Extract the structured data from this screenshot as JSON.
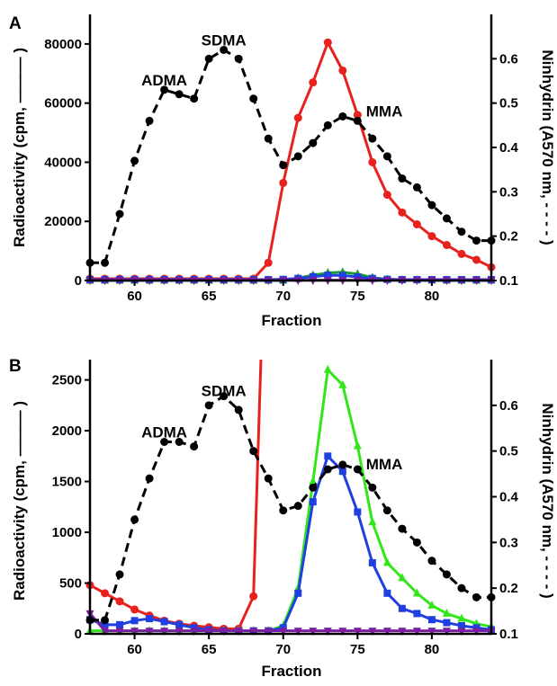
{
  "chart_data": [
    {
      "panel": "A",
      "type": "line",
      "xlabel": "Fraction",
      "ylabel": "Radioactivity (cpm, ——— )",
      "y2label": "Ninhydrin (A570 nm, - - - - )",
      "xlim": [
        57,
        84
      ],
      "ylim": [
        0,
        90000
      ],
      "y2lim": [
        0.1,
        0.7
      ],
      "x_ticks": [
        60,
        65,
        70,
        75,
        80
      ],
      "y_ticks": [
        0,
        20000,
        40000,
        60000,
        80000
      ],
      "y2_ticks": [
        0.1,
        0.2,
        0.3,
        0.4,
        0.5,
        0.6
      ],
      "annotations": [
        {
          "text": "ADMA",
          "x": 62,
          "y2": 0.54
        },
        {
          "text": "SDMA",
          "x": 66,
          "y2": 0.63
        },
        {
          "text": "MMA",
          "x": 76.8,
          "y2": 0.47
        }
      ],
      "series": [
        {
          "color": "#e8211e",
          "style": "solid",
          "marker": "circle",
          "axis": "left",
          "x": [
            57,
            58,
            59,
            60,
            61,
            62,
            63,
            64,
            65,
            66,
            67,
            68,
            69,
            70,
            71,
            72,
            73,
            74,
            75,
            76,
            77,
            78,
            79,
            80,
            81,
            82,
            83,
            84
          ],
          "y": [
            600,
            600,
            600,
            600,
            600,
            600,
            600,
            600,
            600,
            600,
            600,
            600,
            6000,
            33000,
            55000,
            67000,
            80500,
            71000,
            56000,
            40000,
            29000,
            23000,
            19000,
            15000,
            12000,
            9000,
            7000,
            4500
          ]
        },
        {
          "color": "#1f9e2a",
          "style": "solid",
          "marker": "triangle",
          "axis": "left",
          "x": [
            57,
            58,
            59,
            60,
            61,
            62,
            63,
            64,
            65,
            66,
            67,
            68,
            69,
            70,
            71,
            72,
            73,
            74,
            75,
            76,
            77,
            78,
            79,
            80,
            81,
            82,
            83,
            84
          ],
          "y": [
            0,
            0,
            0,
            0,
            0,
            0,
            0,
            0,
            0,
            0,
            0,
            0,
            0,
            0,
            800,
            1800,
            2600,
            2800,
            2200,
            1000,
            400,
            200,
            100,
            50,
            0,
            0,
            0,
            0
          ]
        },
        {
          "color": "#1f3fe0",
          "style": "solid",
          "marker": "square",
          "axis": "left",
          "x": [
            57,
            58,
            59,
            60,
            61,
            62,
            63,
            64,
            65,
            66,
            67,
            68,
            69,
            70,
            71,
            72,
            73,
            74,
            75,
            76,
            77,
            78,
            79,
            80,
            81,
            82,
            83,
            84
          ],
          "y": [
            300,
            300,
            300,
            300,
            300,
            300,
            300,
            300,
            300,
            300,
            300,
            300,
            300,
            400,
            700,
            1300,
            1800,
            1700,
            1200,
            700,
            400,
            300,
            300,
            300,
            300,
            300,
            300,
            300
          ]
        },
        {
          "color": "#7b1fa2",
          "style": "solid",
          "marker": "triangle-down",
          "axis": "left",
          "x": [
            57,
            58,
            59,
            60,
            61,
            62,
            63,
            64,
            65,
            66,
            67,
            68,
            69,
            70,
            71,
            72,
            73,
            74,
            75,
            76,
            77,
            78,
            79,
            80,
            81,
            82,
            83,
            84
          ],
          "y": [
            100,
            100,
            100,
            100,
            100,
            100,
            100,
            100,
            100,
            100,
            100,
            100,
            100,
            100,
            100,
            100,
            100,
            100,
            100,
            100,
            100,
            100,
            100,
            100,
            100,
            100,
            100,
            100
          ]
        },
        {
          "color": "#000000",
          "style": "dashed",
          "marker": "circle",
          "axis": "right",
          "x": [
            57,
            58,
            59,
            60,
            61,
            62,
            63,
            64,
            65,
            66,
            67,
            68,
            69,
            70,
            71,
            72,
            73,
            74,
            75,
            76,
            77,
            78,
            79,
            80,
            81,
            82,
            83,
            84
          ],
          "y": [
            0.14,
            0.14,
            0.25,
            0.37,
            0.46,
            0.53,
            0.52,
            0.51,
            0.6,
            0.62,
            0.6,
            0.51,
            0.42,
            0.36,
            0.38,
            0.41,
            0.45,
            0.47,
            0.46,
            0.42,
            0.38,
            0.33,
            0.31,
            0.27,
            0.24,
            0.21,
            0.19,
            0.19
          ]
        }
      ]
    },
    {
      "panel": "B",
      "type": "line",
      "xlabel": "Fraction",
      "ylabel": "Radioactivity (cpm, ——— )",
      "y2label": "Ninhydrin (A570 nm, - - - - )",
      "xlim": [
        57,
        84
      ],
      "ylim": [
        0,
        2700
      ],
      "y2lim": [
        0.1,
        0.7
      ],
      "x_ticks": [
        60,
        65,
        70,
        75,
        80
      ],
      "y_ticks": [
        0,
        500,
        1000,
        1500,
        2000,
        2500
      ],
      "y2_ticks": [
        0.1,
        0.2,
        0.3,
        0.4,
        0.5,
        0.6
      ],
      "annotations": [
        {
          "text": "ADMA",
          "x": 62,
          "y2": 0.53
        },
        {
          "text": "SDMA",
          "x": 66,
          "y2": 0.62
        },
        {
          "text": "MMA",
          "x": 76.8,
          "y2": 0.46
        }
      ],
      "series": [
        {
          "color": "#e8211e",
          "style": "solid",
          "marker": "circle",
          "axis": "left",
          "x": [
            57,
            58,
            59,
            60,
            61,
            62,
            63,
            64,
            65,
            66,
            67,
            68,
            68.5
          ],
          "y": [
            480,
            400,
            320,
            240,
            180,
            130,
            100,
            80,
            65,
            50,
            50,
            370,
            2700
          ]
        },
        {
          "color": "#33e61a",
          "style": "solid",
          "marker": "triangle",
          "axis": "left",
          "x": [
            57,
            58,
            59,
            60,
            61,
            62,
            63,
            64,
            65,
            66,
            67,
            68,
            69,
            70,
            71,
            72,
            73,
            74,
            75,
            76,
            77,
            78,
            79,
            80,
            81,
            82,
            83,
            84
          ],
          "y": [
            30,
            30,
            30,
            30,
            30,
            30,
            30,
            30,
            30,
            30,
            30,
            30,
            30,
            80,
            450,
            1500,
            2600,
            2450,
            1850,
            1100,
            700,
            550,
            400,
            280,
            200,
            150,
            100,
            70
          ]
        },
        {
          "color": "#1f3fe0",
          "style": "solid",
          "marker": "square",
          "axis": "left",
          "x": [
            57,
            58,
            59,
            60,
            61,
            62,
            63,
            64,
            65,
            66,
            67,
            68,
            69,
            70,
            71,
            72,
            73,
            74,
            75,
            76,
            77,
            78,
            79,
            80,
            81,
            82,
            83,
            84
          ],
          "y": [
            140,
            90,
            90,
            130,
            150,
            120,
            90,
            60,
            40,
            30,
            30,
            30,
            30,
            60,
            400,
            1300,
            1750,
            1600,
            1200,
            700,
            400,
            250,
            200,
            140,
            110,
            80,
            60,
            40
          ]
        },
        {
          "color": "#7b1fa2",
          "style": "solid",
          "marker": "triangle-down",
          "axis": "left",
          "x": [
            57,
            58,
            59,
            60,
            61,
            62,
            63,
            64,
            65,
            66,
            67,
            68,
            69,
            70,
            71,
            72,
            73,
            74,
            75,
            76,
            77,
            78,
            79,
            80,
            81,
            82,
            83,
            84
          ],
          "y": [
            200,
            30,
            30,
            30,
            30,
            30,
            30,
            30,
            30,
            30,
            30,
            30,
            30,
            30,
            30,
            30,
            30,
            30,
            30,
            30,
            30,
            30,
            30,
            30,
            30,
            30,
            30,
            30
          ]
        },
        {
          "color": "#000000",
          "style": "dashed",
          "marker": "circle",
          "axis": "right",
          "x": [
            57,
            58,
            59,
            60,
            61,
            62,
            63,
            64,
            65,
            66,
            67,
            68,
            69,
            70,
            71,
            72,
            73,
            74,
            75,
            76,
            77,
            78,
            79,
            80,
            81,
            82,
            83,
            84
          ],
          "y": [
            0.13,
            0.13,
            0.23,
            0.35,
            0.44,
            0.52,
            0.52,
            0.51,
            0.6,
            0.62,
            0.59,
            0.5,
            0.44,
            0.37,
            0.38,
            0.42,
            0.46,
            0.47,
            0.46,
            0.42,
            0.37,
            0.33,
            0.3,
            0.26,
            0.23,
            0.2,
            0.18,
            0.18
          ]
        }
      ]
    }
  ]
}
